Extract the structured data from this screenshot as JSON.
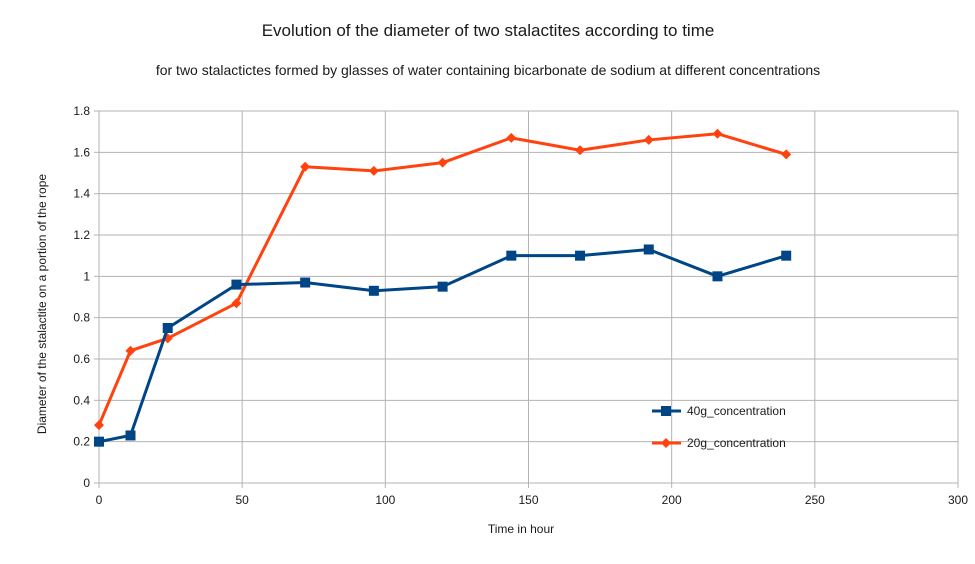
{
  "chart_data": {
    "type": "line",
    "title": "Evolution of the diameter of two stalactites according to time",
    "subtitle": "for two stalactictes formed by glasses of water containing bicarbonate de sodium at different concentrations",
    "xlabel": "Time in hour",
    "ylabel": "Diameter of the stalactite on a portion of the rope",
    "xlim": [
      0,
      300
    ],
    "ylim": [
      0,
      1.8
    ],
    "x_ticks": [
      0,
      50,
      100,
      150,
      200,
      250,
      300
    ],
    "y_ticks": [
      0,
      0.2,
      0.4,
      0.6,
      0.8,
      1,
      1.2,
      1.4,
      1.6,
      1.8
    ],
    "x_tick_labels": [
      "0",
      "50",
      "100",
      "150",
      "200",
      "250",
      "300"
    ],
    "y_tick_labels": [
      "0",
      "0.2",
      "0.4",
      "0.6",
      "0.8",
      "1",
      "1.2",
      "1.4",
      "1.6",
      "1.8"
    ],
    "grid": true,
    "legend_position": "right",
    "series": [
      {
        "name": "40g_concentration",
        "color": "#004586",
        "marker": "square",
        "x": [
          0,
          11,
          24,
          48,
          72,
          96,
          120,
          144,
          168,
          192,
          216,
          240
        ],
        "y": [
          0.2,
          0.23,
          0.75,
          0.96,
          0.97,
          0.93,
          0.95,
          1.1,
          1.1,
          1.13,
          1.0,
          1.1
        ]
      },
      {
        "name": "20g_concentration",
        "color": "#ff420e",
        "marker": "diamond",
        "x": [
          0,
          11,
          24,
          48,
          72,
          96,
          120,
          144,
          168,
          192,
          216,
          240
        ],
        "y": [
          0.28,
          0.64,
          0.7,
          0.87,
          1.53,
          1.51,
          1.55,
          1.67,
          1.61,
          1.66,
          1.69,
          1.59
        ]
      }
    ]
  }
}
